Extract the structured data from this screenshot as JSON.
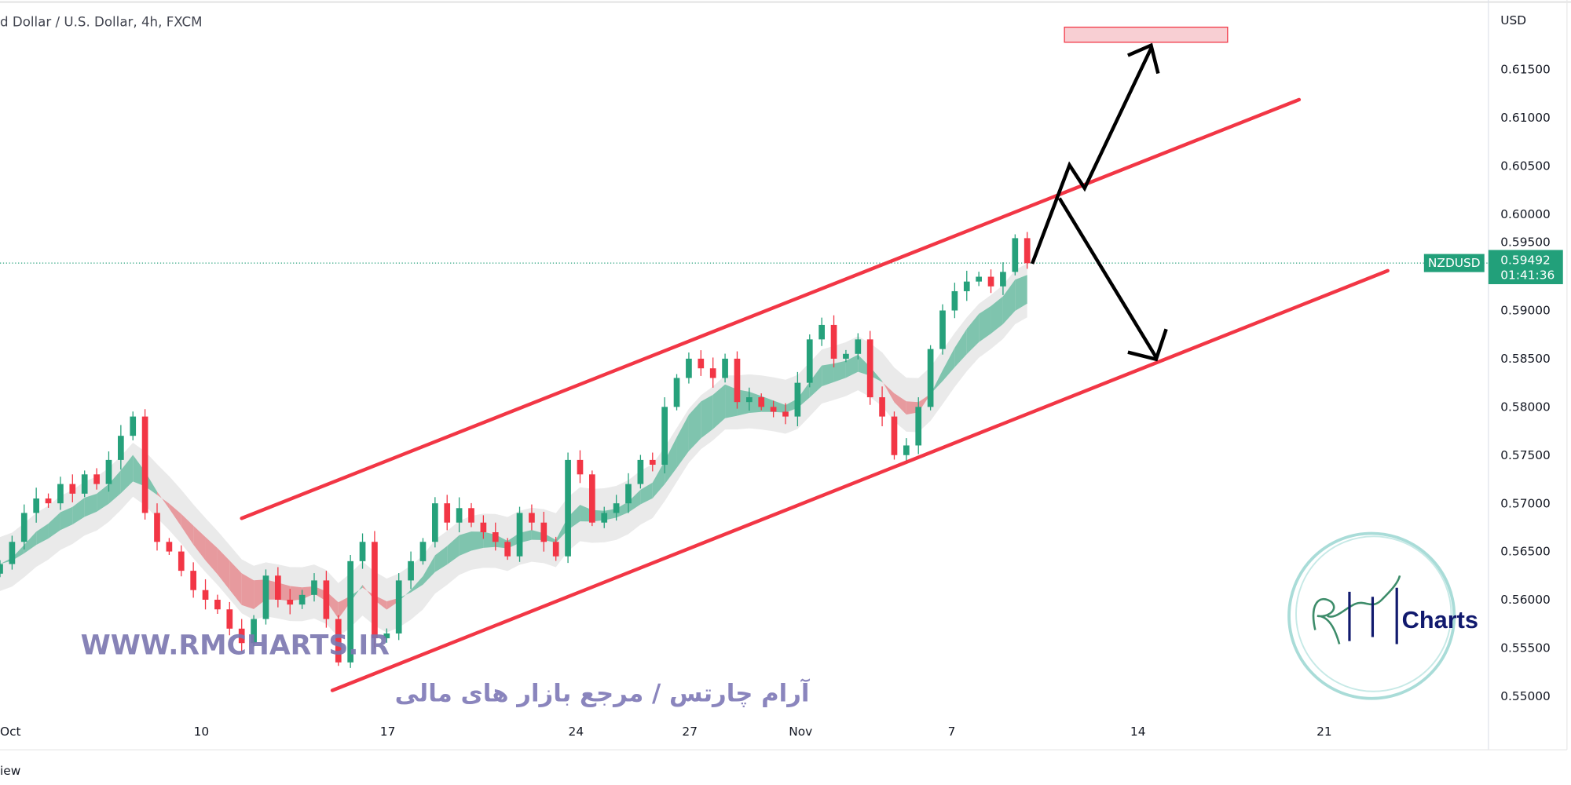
{
  "header": {
    "title": "d Dollar / U.S. Dollar, 4h, FXCM"
  },
  "footer": {
    "text": "iew"
  },
  "watermark": {
    "url": "WWW.RMCHARTS.IR",
    "persian": "آرام چارتس / مرجع بازار های مالی"
  },
  "logo": {
    "text": "Charts",
    "mark": "RM"
  },
  "colors": {
    "up": "#26a17b",
    "down": "#f23645",
    "channel": "#f23645",
    "ribbon_up": "#7fc4ae",
    "ribbon_down": "#e79a9e",
    "band": "#e3e3e3",
    "target_box": "#f8cfd3",
    "tag": "#22a07a"
  },
  "chart_data": {
    "type": "candlestick",
    "symbol": "NZDUSD",
    "last_price": "0.59492",
    "countdown": "01:41:36",
    "currency": "USD",
    "ylim": [
      0.548,
      0.6195
    ],
    "y_ticks": [
      "0.61500",
      "0.61000",
      "0.60500",
      "0.60000",
      "0.59500",
      "0.59000",
      "0.58500",
      "0.58000",
      "0.57500",
      "0.57000",
      "0.56500",
      "0.56000",
      "0.55500",
      "0.55000"
    ],
    "x_ticks": [
      "Oct",
      "10",
      "17",
      "24",
      "27",
      "Nov",
      "7",
      "14",
      "21"
    ],
    "closes": [
      0.5637,
      0.566,
      0.569,
      0.5705,
      0.57,
      0.572,
      0.571,
      0.573,
      0.572,
      0.5745,
      0.577,
      0.579,
      0.569,
      0.566,
      0.565,
      0.563,
      0.561,
      0.56,
      0.559,
      0.557,
      0.5555,
      0.558,
      0.5625,
      0.56,
      0.5595,
      0.5605,
      0.562,
      0.558,
      0.5535,
      0.564,
      0.566,
      0.556,
      0.5565,
      0.562,
      0.564,
      0.566,
      0.57,
      0.568,
      0.5695,
      0.568,
      0.567,
      0.566,
      0.5645,
      0.569,
      0.568,
      0.566,
      0.5645,
      0.5745,
      0.573,
      0.568,
      0.569,
      0.57,
      0.572,
      0.5745,
      0.574,
      0.58,
      0.583,
      0.585,
      0.584,
      0.583,
      0.585,
      0.5805,
      0.581,
      0.58,
      0.5795,
      0.579,
      0.5825,
      0.587,
      0.5885,
      0.585,
      0.5855,
      0.587,
      0.581,
      0.579,
      0.575,
      0.576,
      0.58,
      0.586,
      0.59,
      0.592,
      0.593,
      0.5935,
      0.5925,
      0.594,
      0.5975,
      0.5949
    ],
    "annotations": {
      "channel": "ascending parallel channel",
      "scenarios": [
        "breakout up to target zone near 0.6175",
        "drop to channel support near 0.585"
      ]
    }
  }
}
